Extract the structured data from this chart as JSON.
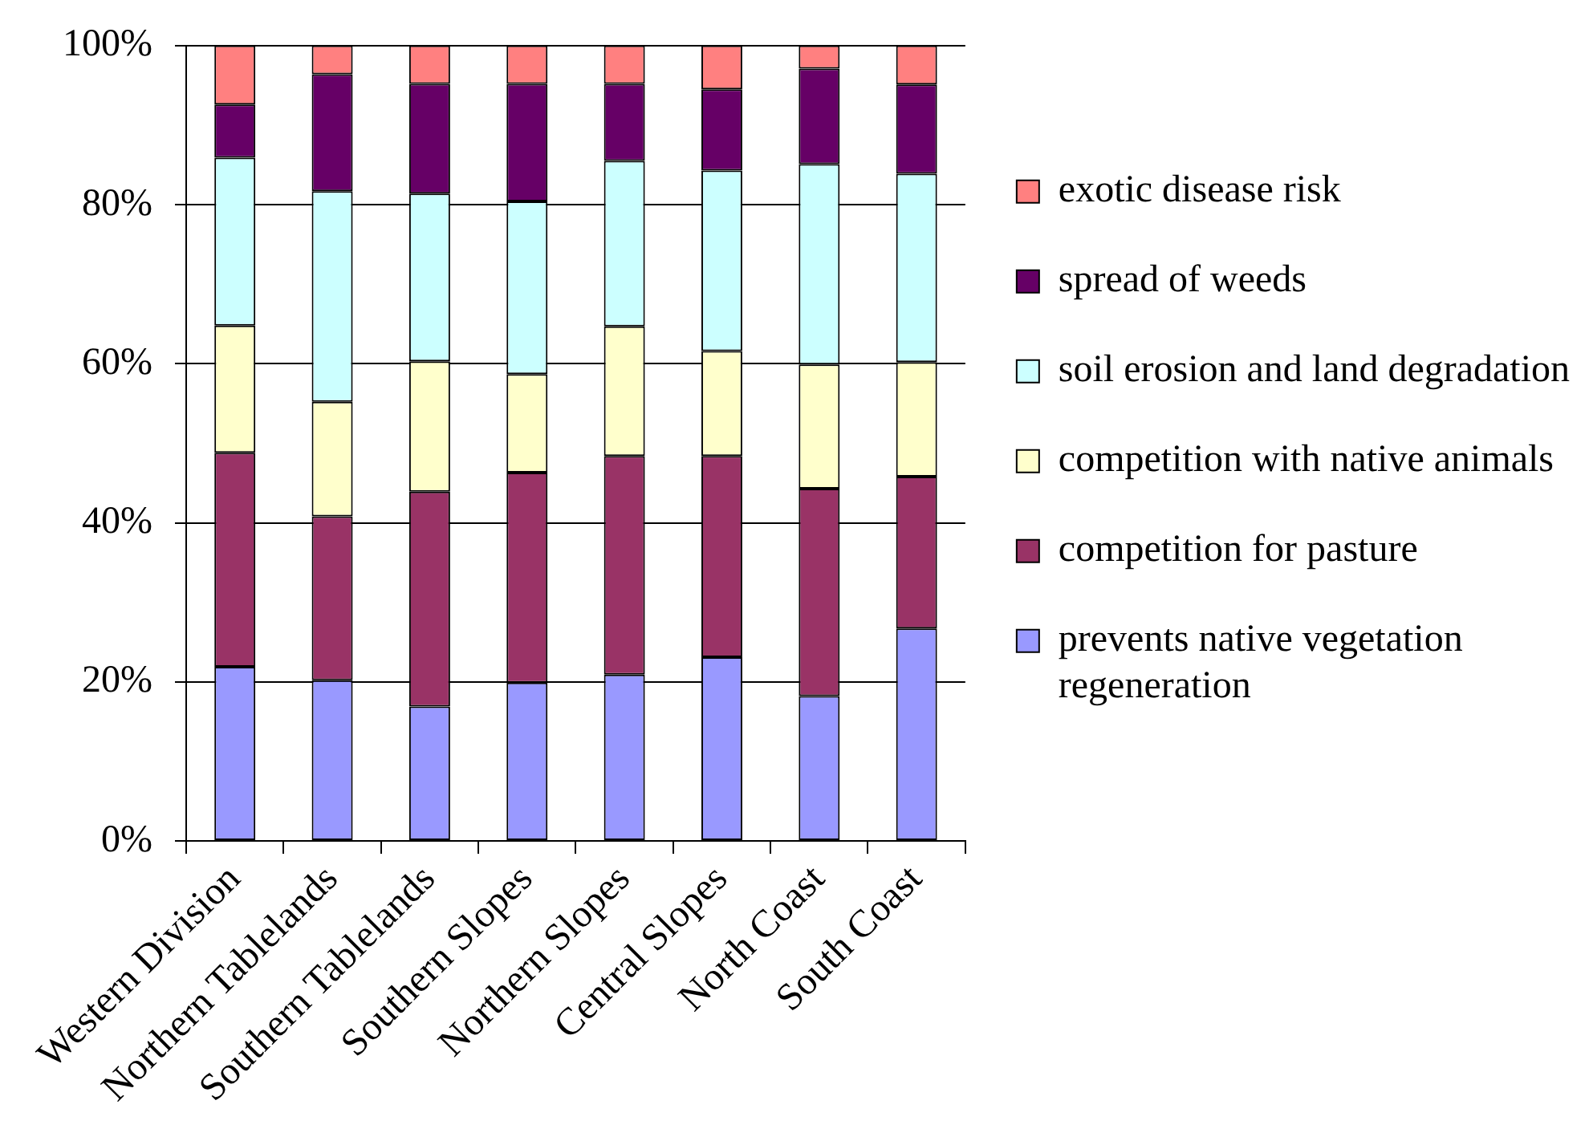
{
  "chart_data": {
    "type": "bar",
    "stacked": true,
    "categories": [
      "Western Division",
      "Northern Tablelands",
      "Southern Tablelands",
      "Southern Slopes",
      "Northern Slopes",
      "Central Slopes",
      "North Coast",
      "South Coast"
    ],
    "series": [
      {
        "name": "prevents native vegetation regeneration",
        "color": "#9999ff",
        "values": [
          21.9,
          20.2,
          16.9,
          19.9,
          20.9,
          23.1,
          18.2,
          26.7
        ]
      },
      {
        "name": "competition for pasture",
        "color": "#993366",
        "values": [
          26.9,
          20.6,
          27.0,
          26.4,
          27.5,
          25.3,
          26.1,
          19.1
        ]
      },
      {
        "name": "competition with native animals",
        "color": "#ffffcc",
        "values": [
          16.0,
          14.4,
          16.4,
          12.4,
          16.3,
          13.2,
          15.6,
          14.4
        ]
      },
      {
        "name": "soil erosion and land degradation",
        "color": "#ccffff",
        "values": [
          21.1,
          26.5,
          21.1,
          21.7,
          20.8,
          22.7,
          25.2,
          23.7
        ]
      },
      {
        "name": "spread of weeds",
        "color": "#660066",
        "values": [
          6.7,
          14.7,
          13.8,
          14.8,
          9.7,
          10.2,
          12.0,
          11.2
        ]
      },
      {
        "name": "exotic disease risk",
        "color": "#ff8080",
        "values": [
          7.4,
          3.6,
          4.8,
          4.8,
          4.8,
          5.5,
          2.9,
          4.9
        ]
      }
    ],
    "ylim": [
      0,
      100
    ],
    "yticks": [
      {
        "value": 0,
        "label": "0%"
      },
      {
        "value": 20,
        "label": "20%"
      },
      {
        "value": 40,
        "label": "40%"
      },
      {
        "value": 60,
        "label": "60%"
      },
      {
        "value": 80,
        "label": "80%"
      },
      {
        "value": 100,
        "label": "100%"
      }
    ],
    "grid": "y",
    "legend": "right"
  }
}
